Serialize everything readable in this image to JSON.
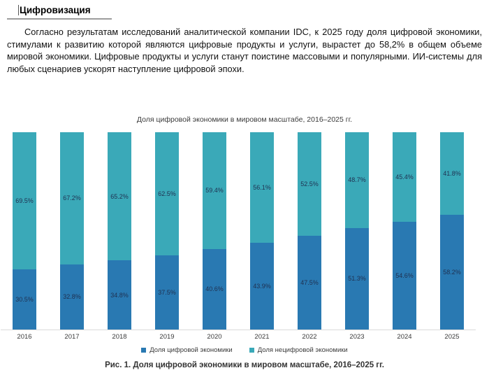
{
  "document": {
    "title": "Цифровизация",
    "paragraph": "Согласно результатам исследований аналитической компании IDC, к 2025 году доля цифровой экономики, стимулами к развитию которой являются цифровые продукты и услуги, вырастет до 58,2% в общем объеме мировой экономики. Цифровые продукты и услуги станут поистине массовыми и популярными. ИИ-системы для любых сценариев ускорят наступление цифровой эпохи."
  },
  "chart_data": {
    "type": "bar",
    "subtype": "stacked-100-percent",
    "title": "Доля цифровой экономики в мировом масштабе, 2016–2025 гг.",
    "categories": [
      "2016",
      "2017",
      "2018",
      "2019",
      "2020",
      "2021",
      "2022",
      "2023",
      "2024",
      "2025"
    ],
    "series": [
      {
        "name": "Доля цифровой экономики",
        "color": "#2979B2",
        "values": [
          30.5,
          32.8,
          34.8,
          37.5,
          40.6,
          43.9,
          47.5,
          51.3,
          54.6,
          58.2
        ]
      },
      {
        "name": "Доля нецифровой экономики",
        "color": "#3AA9B8",
        "values": [
          69.5,
          67.2,
          65.2,
          62.5,
          59.4,
          56.1,
          52.5,
          48.7,
          45.4,
          41.8
        ]
      }
    ],
    "ylim": [
      0,
      100
    ],
    "grid": false,
    "legend_position": "bottom",
    "data_label_format": "{value}%",
    "data_label_color": "#1F3050",
    "axis_line_color": "#D9D9D9"
  },
  "figure": {
    "caption": "Рис. 1. Доля цифровой экономики в мировом масштабе, 2016–2025 гг."
  }
}
